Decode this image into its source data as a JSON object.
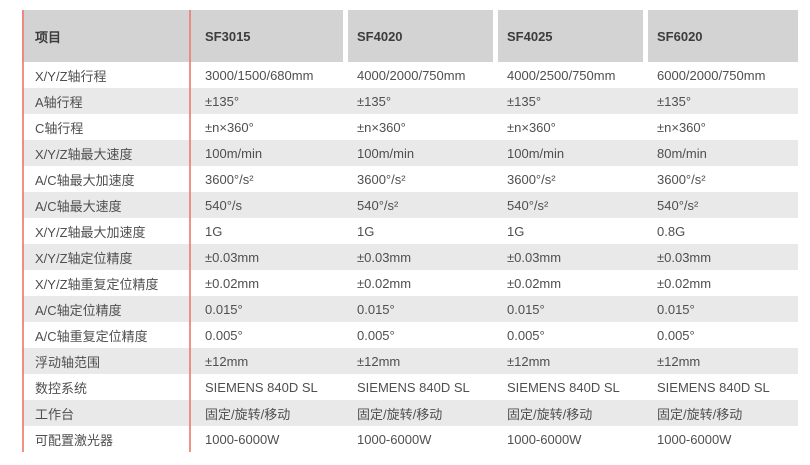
{
  "table": {
    "header": {
      "item_label": "项目",
      "models": [
        "SF3015",
        "SF4020",
        "SF4025",
        "SF6020"
      ]
    },
    "rows": [
      {
        "label": "X/Y/Z轴行程",
        "values": [
          "3000/1500/680mm",
          "4000/2000/750mm",
          "4000/2500/750mm",
          "6000/2000/750mm"
        ]
      },
      {
        "label": "A轴行程",
        "values": [
          "±135°",
          "±135°",
          "±135°",
          "±135°"
        ]
      },
      {
        "label": "C轴行程",
        "values": [
          "±n×360°",
          "±n×360°",
          "±n×360°",
          "±n×360°"
        ]
      },
      {
        "label": "X/Y/Z轴最大速度",
        "values": [
          "100m/min",
          "100m/min",
          "100m/min",
          "80m/min"
        ]
      },
      {
        "label": "A/C轴最大加速度",
        "values": [
          "3600°/s²",
          "3600°/s²",
          "3600°/s²",
          "3600°/s²"
        ]
      },
      {
        "label": "A/C轴最大速度",
        "values": [
          "540°/s",
          "540°/s²",
          "540°/s²",
          "540°/s²"
        ]
      },
      {
        "label": "X/Y/Z轴最大加速度",
        "values": [
          "1G",
          "1G",
          "1G",
          "0.8G"
        ]
      },
      {
        "label": "X/Y/Z轴定位精度",
        "values": [
          "±0.03mm",
          "±0.03mm",
          "±0.03mm",
          "±0.03mm"
        ]
      },
      {
        "label": "X/Y/Z轴重复定位精度",
        "values": [
          "±0.02mm",
          "±0.02mm",
          "±0.02mm",
          "±0.02mm"
        ]
      },
      {
        "label": "A/C轴定位精度",
        "values": [
          "0.015°",
          "0.015°",
          "0.015°",
          "0.015°"
        ]
      },
      {
        "label": "A/C轴重复定位精度",
        "values": [
          "0.005°",
          "0.005°",
          "0.005°",
          "0.005°"
        ]
      },
      {
        "label": "浮动轴范围",
        "values": [
          "±12mm",
          "±12mm",
          "±12mm",
          "±12mm"
        ]
      },
      {
        "label": "数控系统",
        "values": [
          "SIEMENS 840D SL",
          "SIEMENS 840D SL",
          "SIEMENS 840D SL",
          "SIEMENS 840D SL"
        ]
      },
      {
        "label": "工作台",
        "values": [
          "固定/旋转/移动",
          "固定/旋转/移动",
          "固定/旋转/移动",
          "固定/旋转/移动"
        ]
      },
      {
        "label": "可配置激光器",
        "values": [
          "1000-6000W",
          "1000-6000W",
          "1000-6000W",
          "1000-6000W"
        ]
      }
    ],
    "colors": {
      "header_bg": "#d3d3d3",
      "stripe_bg": "#e9e9e9",
      "accent_line": "#ee7b73",
      "text": "#4f4f4f"
    }
  }
}
